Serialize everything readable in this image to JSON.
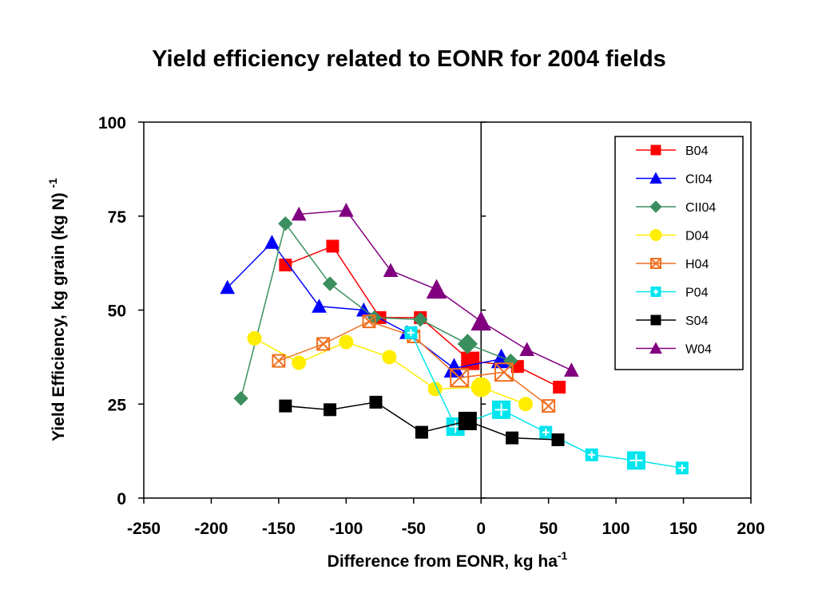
{
  "chart_data": {
    "type": "scatter",
    "title": "Yield efficiency related to EONR for 2004 fields",
    "xlabel": "Difference from EONR, kg ha",
    "xlabel_sup": "-1",
    "ylabel": "Yield Efficiency, kg grain (kg N)",
    "ylabel_sup": "-1",
    "xlim": [
      -250,
      200
    ],
    "ylim": [
      0,
      100
    ],
    "xticks": [
      -250,
      -200,
      -150,
      -100,
      -50,
      0,
      50,
      100,
      150,
      200
    ],
    "yticks": [
      0,
      25,
      50,
      75,
      100
    ],
    "grid": false,
    "vline_at": 0,
    "legend_position": "top-right",
    "series": [
      {
        "name": "B04",
        "color": "#ff0000",
        "marker": "square",
        "points": [
          [
            -145,
            62
          ],
          [
            -110,
            67
          ],
          [
            -75,
            48
          ],
          [
            -45,
            48
          ],
          [
            -8,
            36.5
          ],
          [
            27,
            35
          ],
          [
            58,
            29.5
          ]
        ]
      },
      {
        "name": "CI04",
        "color": "#0000ff",
        "marker": "triangle",
        "points": [
          [
            -188,
            56
          ],
          [
            -155,
            68
          ],
          [
            -120,
            51
          ],
          [
            -87,
            50
          ],
          [
            -55,
            44
          ],
          [
            -20,
            34.5
          ],
          [
            15,
            37
          ]
        ]
      },
      {
        "name": "CII04",
        "color": "#3b8f5e",
        "marker": "diamond",
        "points": [
          [
            -178,
            26.5
          ],
          [
            -145,
            73
          ],
          [
            -112,
            57
          ],
          [
            -79,
            48
          ],
          [
            -45,
            47.5
          ],
          [
            -10,
            41
          ],
          [
            22,
            36.5
          ]
        ]
      },
      {
        "name": "D04",
        "color": "#ffee00",
        "marker": "circle",
        "points": [
          [
            -168,
            42.5
          ],
          [
            -135,
            36
          ],
          [
            -100,
            41.5
          ],
          [
            -68,
            37.5
          ],
          [
            -34,
            29
          ],
          [
            0,
            29.5
          ],
          [
            33,
            25
          ]
        ]
      },
      {
        "name": "H04",
        "color": "#f07020",
        "marker": "square-x",
        "points": [
          [
            -150,
            36.5
          ],
          [
            -117,
            41
          ],
          [
            -83,
            47
          ],
          [
            -50,
            43
          ],
          [
            -16,
            32
          ],
          [
            17,
            33.5
          ],
          [
            50,
            24.5
          ]
        ]
      },
      {
        "name": "P04",
        "color": "#00e5ee",
        "marker": "square-plus",
        "points": [
          [
            -52,
            44
          ],
          [
            -19,
            19
          ],
          [
            15,
            23.5
          ],
          [
            48,
            17.5
          ],
          [
            82,
            11.5
          ],
          [
            115,
            10
          ],
          [
            149,
            8
          ]
        ]
      },
      {
        "name": "S04",
        "color": "#000000",
        "marker": "square",
        "points": [
          [
            -145,
            24.5
          ],
          [
            -112,
            23.5
          ],
          [
            -78,
            25.5
          ],
          [
            -44,
            17.5
          ],
          [
            -10,
            20.5
          ],
          [
            23,
            16
          ],
          [
            57,
            15.5
          ]
        ]
      },
      {
        "name": "W04",
        "color": "#800080",
        "marker": "triangle",
        "points": [
          [
            -135,
            75.5
          ],
          [
            -100,
            76.5
          ],
          [
            -67,
            60.5
          ],
          [
            -33,
            55.5
          ],
          [
            0,
            47
          ],
          [
            34,
            39.5
          ],
          [
            67,
            34
          ]
        ]
      }
    ]
  }
}
